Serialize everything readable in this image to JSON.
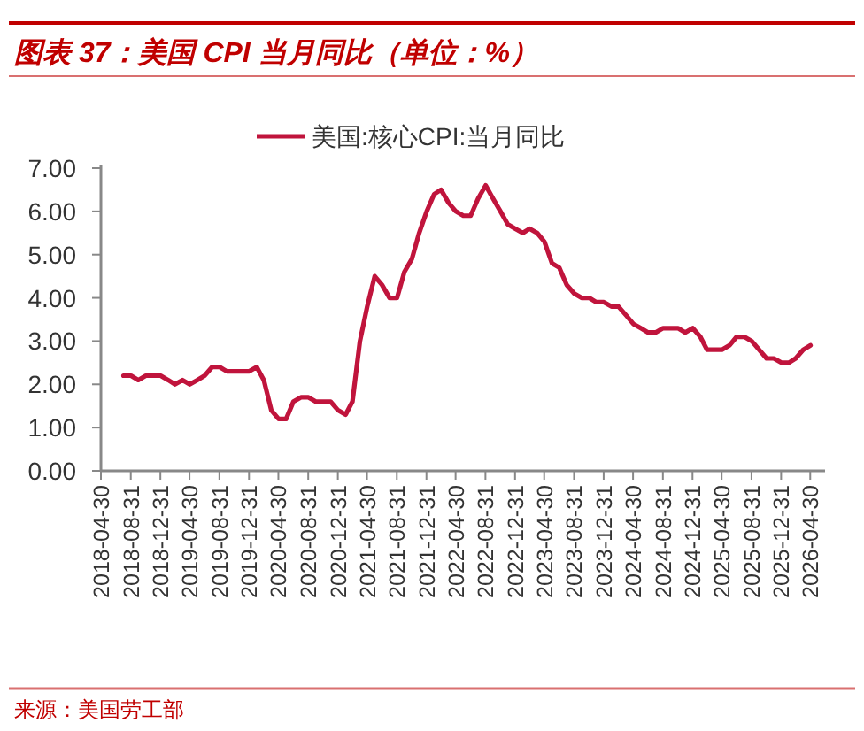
{
  "chart_data": {
    "type": "line",
    "title": "图表 37：美国 CPI 当月同比（单位：%）",
    "annotations": [
      "来源：美国劳工部"
    ],
    "x": [
      "2018-08",
      "2018-09",
      "2018-10",
      "2018-11",
      "2018-12",
      "2019-01",
      "2019-02",
      "2019-03",
      "2019-04",
      "2019-05",
      "2019-06",
      "2019-07",
      "2019-08",
      "2019-09",
      "2019-10",
      "2019-11",
      "2019-12",
      "2020-01",
      "2020-02",
      "2020-03",
      "2020-04",
      "2020-05",
      "2020-06",
      "2020-07",
      "2020-08",
      "2020-09",
      "2020-10",
      "2020-11",
      "2020-12",
      "2021-01",
      "2021-02",
      "2021-03",
      "2021-04",
      "2021-05",
      "2021-06",
      "2021-07",
      "2021-08",
      "2021-09",
      "2021-10",
      "2021-11",
      "2021-12",
      "2022-01",
      "2022-02",
      "2022-03",
      "2022-04",
      "2022-05",
      "2022-06",
      "2022-07",
      "2022-08",
      "2022-09",
      "2022-10",
      "2022-11",
      "2022-12",
      "2023-01",
      "2023-02",
      "2023-03",
      "2023-04",
      "2023-05",
      "2023-06",
      "2023-07",
      "2023-08",
      "2023-09",
      "2023-10",
      "2023-11",
      "2023-12",
      "2024-01",
      "2024-02",
      "2024-03",
      "2024-04",
      "2024-05",
      "2024-06",
      "2024-07",
      "2024-08",
      "2024-09",
      "2024-10",
      "2024-11",
      "2024-12",
      "2025-01",
      "2025-02",
      "2025-03",
      "2025-04",
      "2025-05",
      "2025-06",
      "2025-07",
      "2025-08",
      "2025-09",
      "2025-11",
      "2025-12",
      "2026-01",
      "2026-02",
      "2026-03",
      "2026-04",
      "2026-05"
    ],
    "series": [
      {
        "name": "美国:核心CPI:当月同比",
        "color": "#c0143c",
        "values": [
          2.2,
          2.2,
          2.1,
          2.2,
          2.2,
          2.2,
          2.1,
          2.0,
          2.1,
          2.0,
          2.1,
          2.2,
          2.4,
          2.4,
          2.3,
          2.3,
          2.3,
          2.3,
          2.4,
          2.1,
          1.4,
          1.2,
          1.2,
          1.6,
          1.7,
          1.7,
          1.6,
          1.6,
          1.6,
          1.4,
          1.3,
          1.6,
          3.0,
          3.8,
          4.5,
          4.3,
          4.0,
          4.0,
          4.6,
          4.9,
          5.5,
          6.0,
          6.4,
          6.5,
          6.2,
          6.0,
          5.9,
          5.9,
          6.3,
          6.6,
          6.3,
          6.0,
          5.7,
          5.6,
          5.5,
          5.6,
          5.5,
          5.3,
          4.8,
          4.7,
          4.3,
          4.1,
          4.0,
          4.0,
          3.9,
          3.9,
          3.8,
          3.8,
          3.6,
          3.4,
          3.3,
          3.2,
          3.2,
          3.3,
          3.3,
          3.3,
          3.2,
          3.3,
          3.1,
          2.8,
          2.8,
          2.8,
          2.9,
          3.1,
          3.1,
          3.0,
          2.6,
          2.6,
          2.5,
          2.5,
          2.6,
          2.8,
          2.9
        ]
      }
    ],
    "xlim": [
      "2018-04-30",
      "2026-06-30"
    ],
    "xticks": [
      "2018-04-30",
      "2018-08-31",
      "2018-12-31",
      "2019-04-30",
      "2019-08-31",
      "2019-12-31",
      "2020-04-30",
      "2020-08-31",
      "2020-12-31",
      "2021-04-30",
      "2021-08-31",
      "2021-12-31",
      "2022-04-30",
      "2022-08-31",
      "2022-12-31",
      "2023-04-30",
      "2023-08-31",
      "2023-12-31",
      "2024-04-30",
      "2024-08-31",
      "2024-12-31",
      "2025-04-30",
      "2025-08-31",
      "2025-12-31",
      "2026-04-30"
    ],
    "ylim": [
      0,
      7
    ],
    "yticks": [
      {
        "value": 0,
        "label": "0.00"
      },
      {
        "value": 1,
        "label": "1.00"
      },
      {
        "value": 2,
        "label": "2.00"
      },
      {
        "value": 3,
        "label": "3.00"
      },
      {
        "value": 4,
        "label": "4.00"
      },
      {
        "value": 5,
        "label": "5.00"
      },
      {
        "value": 6,
        "label": "6.00"
      },
      {
        "value": 7,
        "label": "7.00"
      }
    ],
    "legend": "top",
    "grid": false,
    "marker": "none",
    "line_style": "solid"
  }
}
